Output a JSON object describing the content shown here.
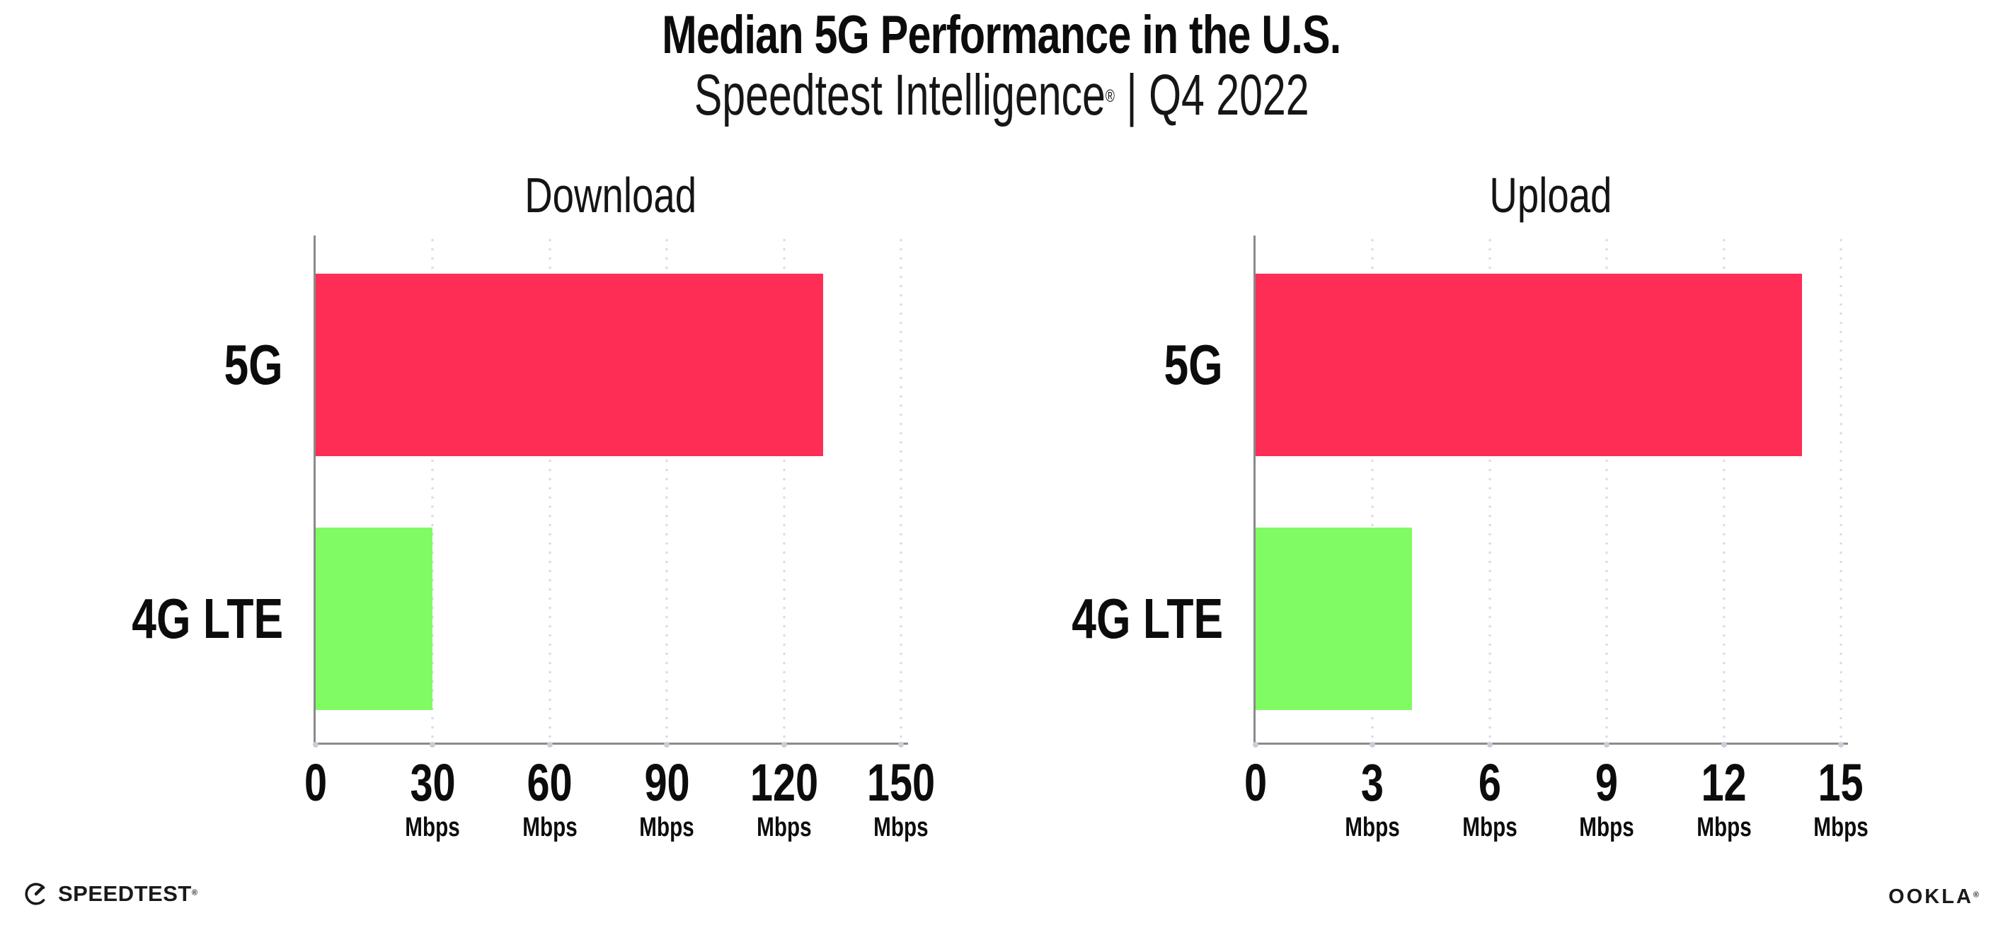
{
  "header": {
    "title": "Median 5G Performance in the U.S.",
    "subtitle_brand": "Speedtest Intelligence",
    "subtitle_reg_mark": "®",
    "subtitle_rest": " | Q4 2022"
  },
  "colors": {
    "bar_5g": "#fd2d55",
    "bar_4g_lte": "#81fb63",
    "axis_line": "#8a8a8a",
    "grid_dot": "#dcdce6",
    "text": "#0c0c0c"
  },
  "chart_data": [
    {
      "type": "bar",
      "orientation": "horizontal",
      "title": "Download",
      "categories": [
        "5G",
        "4G LTE"
      ],
      "values": [
        130,
        30
      ],
      "unit": "Mbps",
      "xlim": [
        0,
        150
      ],
      "xticks": [
        0,
        30,
        60,
        90,
        120,
        150
      ],
      "xtick_unit": "Mbps",
      "grid": "dotted-vertical",
      "legend": "none"
    },
    {
      "type": "bar",
      "orientation": "horizontal",
      "title": "Upload",
      "categories": [
        "5G",
        "4G LTE"
      ],
      "values": [
        14,
        4
      ],
      "unit": "Mbps",
      "xlim": [
        0,
        15
      ],
      "xticks": [
        0,
        3,
        6,
        9,
        12,
        15
      ],
      "xtick_unit": "Mbps",
      "grid": "dotted-vertical",
      "legend": "none"
    }
  ],
  "footer": {
    "speedtest_wordmark": "SPEEDTEST",
    "speedtest_mark": "®",
    "ookla_wordmark": "OOKLA",
    "ookla_mark": "®"
  }
}
